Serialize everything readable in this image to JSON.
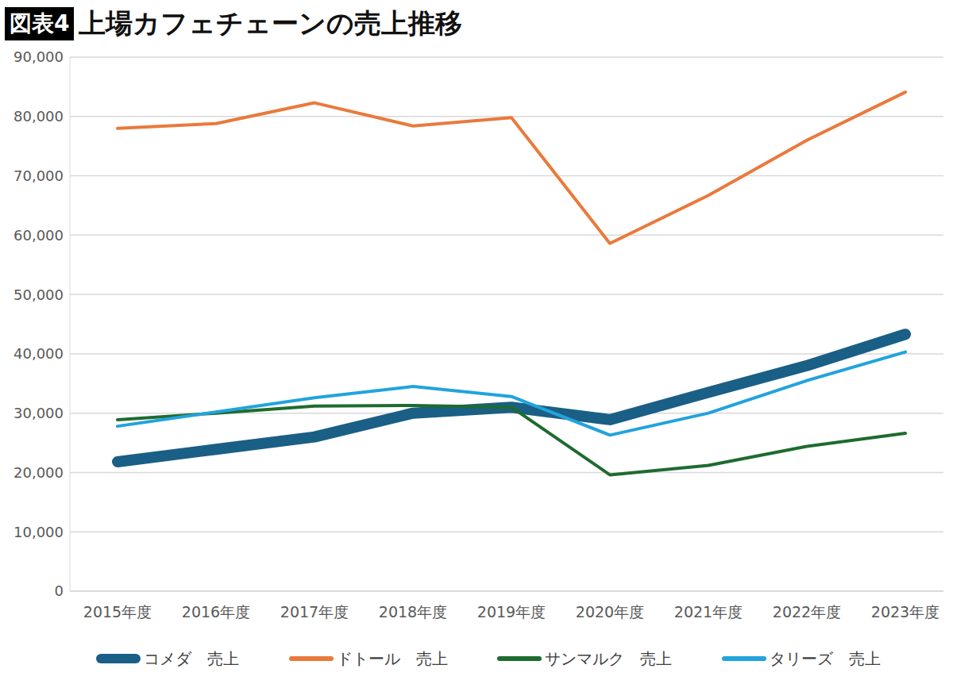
{
  "chart_data": {
    "type": "line",
    "title": "上場カフェチェーンの売上推移",
    "annotations": [
      "図表4"
    ],
    "categories": [
      "2015年度",
      "2016年度",
      "2017年度",
      "2018年度",
      "2019年度",
      "2020年度",
      "2021年度",
      "2022年度",
      "2023年度"
    ],
    "series": [
      {
        "name": "コメダ　売上",
        "color": "#1a5f85",
        "values": [
          21800,
          23900,
          26000,
          30000,
          31000,
          28900,
          33500,
          38000,
          43300
        ]
      },
      {
        "name": "ドトール　売上",
        "color": "#e97a3c",
        "values": [
          78000,
          78800,
          82300,
          78400,
          79800,
          58600,
          66700,
          76000,
          84100
        ]
      },
      {
        "name": "サンマルク　売上",
        "color": "#1e6b30",
        "values": [
          28900,
          30000,
          31200,
          31300,
          31000,
          19600,
          21200,
          24400,
          26600
        ]
      },
      {
        "name": "タリーズ　売上",
        "color": "#22a3dc",
        "values": [
          27800,
          30200,
          32600,
          34500,
          32800,
          26300,
          30000,
          35500,
          40300
        ]
      }
    ],
    "ylim": [
      0,
      90000
    ],
    "yticks": [
      0,
      {
        "value": 10000,
        "label": "10,000"
      },
      {
        "value": 20000,
        "label": "20,000"
      },
      {
        "value": 30000,
        "label": "30,000"
      },
      {
        "value": 40000,
        "label": "40,000"
      },
      {
        "value": 50000,
        "label": "50,000"
      },
      {
        "value": 60000,
        "label": "60,000"
      },
      {
        "value": 70000,
        "label": "70,000"
      },
      {
        "value": 80000,
        "label": "80,000"
      },
      {
        "value": 90000,
        "label": "90,000"
      }
    ],
    "grid": true,
    "legend": "bottom"
  }
}
